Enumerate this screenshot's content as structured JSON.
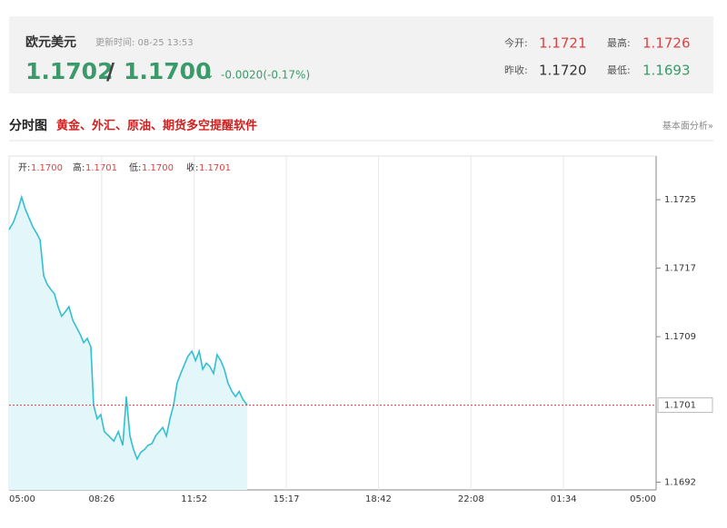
{
  "header": {
    "title": "欧元美元",
    "updated": "更新时间: 08-25 13:53",
    "bid": "1.1702",
    "separator": "/",
    "ask": "1.1700",
    "arrow": "↓",
    "change": "-0.0020(-0.17%)",
    "stats": [
      {
        "label": "今开:",
        "value": "1.1721"
      },
      {
        "label": "最高:",
        "value": "1.1726"
      },
      {
        "label": "昨收:",
        "value": "1.1720"
      },
      {
        "label": "最低:",
        "value": "1.1693"
      }
    ]
  },
  "section": {
    "title": "分时图",
    "promo": "黄金、外汇、原油、期货多空提醒软件",
    "link": "基本面分析»"
  },
  "chart_data": {
    "type": "line",
    "ohlc": [
      {
        "label": "开:",
        "value": "1.1700"
      },
      {
        "label": "高:",
        "value": "1.1701"
      },
      {
        "label": "低:",
        "value": "1.1700"
      },
      {
        "label": "收:",
        "value": "1.1701"
      }
    ],
    "x": [
      0,
      10,
      20,
      28,
      36,
      44,
      53,
      61,
      69,
      77,
      85,
      93,
      101,
      109,
      117,
      125,
      133,
      142,
      150,
      158,
      166,
      174,
      182,
      188,
      196,
      204,
      212,
      222,
      233,
      243,
      253,
      261,
      269,
      277,
      285,
      293,
      301,
      309,
      318,
      326,
      334,
      342,
      350,
      358,
      366,
      374,
      382,
      390,
      398,
      407,
      415,
      423,
      431,
      439,
      447,
      455,
      463,
      471,
      479,
      487,
      496,
      504,
      512,
      520,
      530
    ],
    "series": [
      {
        "color": "#33bfd1",
        "values": [
          1.17215,
          1.17224,
          1.17239,
          1.17253,
          1.17239,
          1.17229,
          1.17218,
          1.17211,
          1.17203,
          1.17161,
          1.17151,
          1.17145,
          1.1714,
          1.17125,
          1.17114,
          1.17119,
          1.17125,
          1.17109,
          1.17101,
          1.17093,
          1.17083,
          1.17088,
          1.17078,
          1.1701,
          1.16994,
          1.16999,
          1.16979,
          1.16974,
          1.16968,
          1.16979,
          1.16963,
          1.1702,
          1.16974,
          1.16958,
          1.16947,
          1.16955,
          1.16958,
          1.16963,
          1.16965,
          1.16974,
          1.16979,
          1.16984,
          1.16974,
          1.16994,
          1.1701,
          1.17036,
          1.17047,
          1.17057,
          1.17067,
          1.17073,
          1.17062,
          1.17073,
          1.17052,
          1.17059,
          1.17055,
          1.17047,
          1.17069,
          1.17062,
          1.17052,
          1.17036,
          1.17026,
          1.1702,
          1.17026,
          1.17017,
          1.1701
        ]
      }
    ],
    "xlim": [
      0,
      1440
    ],
    "xticks": [
      {
        "value": 0,
        "label": "05:00"
      },
      {
        "value": 206,
        "label": "08:26"
      },
      {
        "value": 412,
        "label": "11:52"
      },
      {
        "value": 617,
        "label": "15:17"
      },
      {
        "value": 822,
        "label": "18:42"
      },
      {
        "value": 1028,
        "label": "22:08"
      },
      {
        "value": 1234,
        "label": "01:34"
      },
      {
        "value": 1440,
        "label": "05:00"
      }
    ],
    "ylim": [
      1.16911,
      1.17301
    ],
    "yticks": [
      1.1725,
      1.1717,
      1.1709,
      1.1692
    ],
    "last_price": 1.1701,
    "last_price_color": "#e04040",
    "area_color": "#e3f6f9",
    "grid": true
  }
}
